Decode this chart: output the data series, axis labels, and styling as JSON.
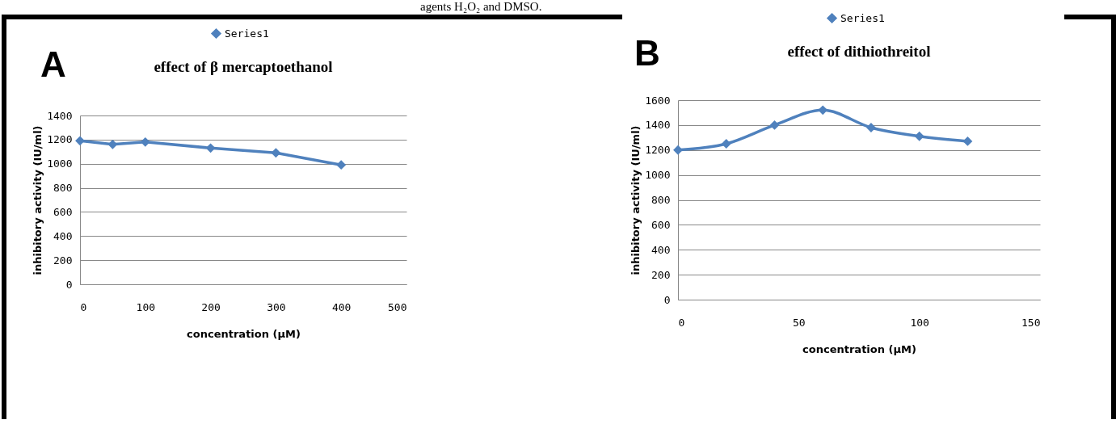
{
  "chart_data": [
    {
      "type": "line",
      "title": "effect of β mercaptoethanol",
      "xlabel": "concentration (µM)",
      "ylabel": "inhibitory activity  (IU/ml)",
      "annotations": [
        "A"
      ],
      "x": [
        0,
        50,
        100,
        200,
        300,
        400
      ],
      "series": [
        {
          "name": "Series1",
          "color": "#4f81bd",
          "values": [
            1190,
            1160,
            1180,
            1130,
            1090,
            990
          ]
        }
      ],
      "xlim": [
        0,
        500
      ],
      "xticks": [
        0,
        100,
        200,
        300,
        400,
        500
      ],
      "ylim": [
        0,
        1400
      ],
      "yticks": [
        0,
        200,
        400,
        600,
        800,
        1000,
        1200,
        1400
      ],
      "grid": "y",
      "legend": "top",
      "marker": "diamond",
      "line_style": "solid"
    },
    {
      "type": "line",
      "title": "effect of dithiothreitol",
      "xlabel": "concentration (µM)",
      "ylabel": "inhibitory activity  (IU/ml)",
      "annotations": [
        "B",
        "agents H₂O₂ and DMSO."
      ],
      "x": [
        0,
        20,
        40,
        60,
        80,
        100,
        120
      ],
      "series": [
        {
          "name": "Series1",
          "color": "#4f81bd",
          "values": [
            1200,
            1250,
            1400,
            1520,
            1380,
            1310,
            1270
          ]
        }
      ],
      "xlim": [
        0,
        150
      ],
      "xticks": [
        0,
        50,
        100,
        150
      ],
      "ylim": [
        0,
        1600
      ],
      "yticks": [
        0,
        200,
        400,
        600,
        800,
        1000,
        1200,
        1400,
        1600
      ],
      "grid": "y",
      "legend": "top",
      "marker": "diamond",
      "line_style": "solid"
    }
  ]
}
